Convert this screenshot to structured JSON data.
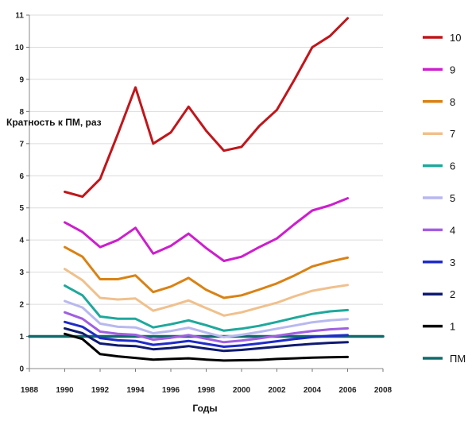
{
  "chart_data": {
    "type": "line",
    "ylabel": "Кратность к ПМ, раз",
    "xlabel": "Годы",
    "xlim": [
      1988,
      2008
    ],
    "ylim": [
      0,
      11
    ],
    "x_ticks": [
      "1988",
      "1990",
      "1992",
      "1994",
      "1996",
      "1998",
      "2000",
      "2002",
      "2004",
      "2006",
      "2008"
    ],
    "y_ticks": [
      "0",
      "1",
      "2",
      "3",
      "4",
      "5",
      "6",
      "7",
      "8",
      "9",
      "10",
      "11"
    ],
    "grid": true,
    "legend_position": "right",
    "x": [
      1990,
      1991,
      1992,
      1993,
      1994,
      1995,
      1996,
      1997,
      1998,
      1999,
      2000,
      2001,
      2002,
      2003,
      2004,
      2005,
      2006
    ],
    "series": [
      {
        "name": "10",
        "color": "#c0161b",
        "values": [
          5.5,
          5.35,
          5.9,
          7.3,
          8.75,
          7.0,
          7.35,
          8.15,
          7.4,
          6.78,
          6.9,
          7.55,
          8.05,
          9.0,
          10.0,
          10.35,
          10.9
        ]
      },
      {
        "name": "9",
        "color": "#cc1fcc",
        "values": [
          4.55,
          4.25,
          3.78,
          4.0,
          4.38,
          3.58,
          3.82,
          4.2,
          3.75,
          3.35,
          3.48,
          3.78,
          4.05,
          4.5,
          4.92,
          5.08,
          5.3
        ]
      },
      {
        "name": "8",
        "color": "#d98214",
        "values": [
          3.78,
          3.48,
          2.78,
          2.78,
          2.9,
          2.38,
          2.55,
          2.82,
          2.45,
          2.2,
          2.28,
          2.46,
          2.65,
          2.9,
          3.18,
          3.33,
          3.45
        ]
      },
      {
        "name": "7",
        "color": "#f0c08c",
        "values": [
          3.1,
          2.75,
          2.2,
          2.15,
          2.18,
          1.8,
          1.95,
          2.12,
          1.88,
          1.65,
          1.75,
          1.9,
          2.05,
          2.25,
          2.42,
          2.52,
          2.6
        ]
      },
      {
        "name": "6",
        "color": "#1ea89c",
        "values": [
          2.58,
          2.28,
          1.62,
          1.55,
          1.55,
          1.28,
          1.38,
          1.5,
          1.35,
          1.18,
          1.24,
          1.33,
          1.45,
          1.58,
          1.7,
          1.78,
          1.82
        ]
      },
      {
        "name": "5",
        "color": "#b8b8f0",
        "values": [
          2.1,
          1.9,
          1.4,
          1.3,
          1.28,
          1.1,
          1.17,
          1.27,
          1.12,
          0.98,
          1.05,
          1.14,
          1.24,
          1.34,
          1.44,
          1.5,
          1.54
        ]
      },
      {
        "name": "4",
        "color": "#a05fe0",
        "values": [
          1.75,
          1.55,
          1.15,
          1.08,
          1.05,
          0.9,
          0.96,
          1.04,
          0.93,
          0.82,
          0.87,
          0.94,
          1.02,
          1.1,
          1.17,
          1.22,
          1.25
        ]
      },
      {
        "name": "3",
        "color": "#1f2bc8",
        "values": [
          1.45,
          1.3,
          0.95,
          0.88,
          0.86,
          0.74,
          0.79,
          0.86,
          0.77,
          0.68,
          0.72,
          0.78,
          0.85,
          0.92,
          0.98,
          1.02,
          1.04
        ]
      },
      {
        "name": "2",
        "color": "#0f1a70",
        "values": [
          1.25,
          1.1,
          0.78,
          0.72,
          0.7,
          0.6,
          0.64,
          0.7,
          0.62,
          0.55,
          0.58,
          0.63,
          0.68,
          0.73,
          0.77,
          0.8,
          0.82
        ]
      },
      {
        "name": "1",
        "color": "#000000",
        "values": [
          1.08,
          0.92,
          0.45,
          0.38,
          0.33,
          0.28,
          0.3,
          0.32,
          0.28,
          0.25,
          0.26,
          0.27,
          0.3,
          0.32,
          0.34,
          0.35,
          0.36
        ]
      },
      {
        "name": "ПМ",
        "color": "#0e6b6b",
        "constant": 1.0,
        "x_range": [
          1988,
          2008
        ]
      }
    ]
  }
}
